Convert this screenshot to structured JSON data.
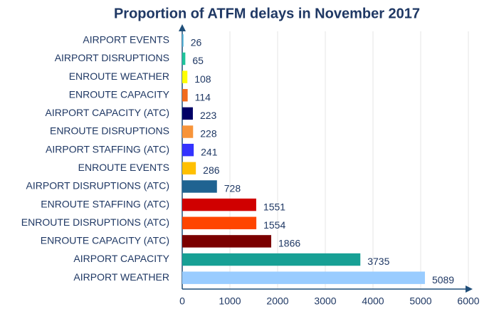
{
  "chart_data": {
    "type": "barh",
    "title": "Proportion of ATFM delays in November 2017",
    "categories": [
      "AIRPORT EVENTS",
      "AIRPORT DISRUPTIONS",
      "ENROUTE WEATHER",
      "ENROUTE CAPACITY",
      "AIRPORT CAPACITY (ATC)",
      "ENROUTE DISRUPTIONS",
      "AIRPORT STAFFING (ATC)",
      "ENROUTE EVENTS",
      "AIRPORT DISRUPTIONS (ATC)",
      "ENROUTE STAFFING (ATC)",
      "ENROUTE DISRUPTIONS (ATC)",
      "ENROUTE CAPACITY (ATC)",
      "AIRPORT CAPACITY",
      "AIRPORT WEATHER"
    ],
    "values": [
      26,
      65,
      108,
      114,
      223,
      228,
      241,
      286,
      728,
      1551,
      1554,
      1866,
      3735,
      5089
    ],
    "colors": [
      "#4fb3d9",
      "#1fc49a",
      "#ffff00",
      "#f26b1d",
      "#000066",
      "#f7943a",
      "#3333ff",
      "#ffc000",
      "#1f6391",
      "#d00000",
      "#ff4500",
      "#7b0000",
      "#17a095",
      "#99ccff"
    ],
    "xlim": [
      0,
      6000
    ],
    "xticks": [
      0,
      1000,
      2000,
      3000,
      4000,
      5000,
      6000
    ],
    "grid": true
  }
}
